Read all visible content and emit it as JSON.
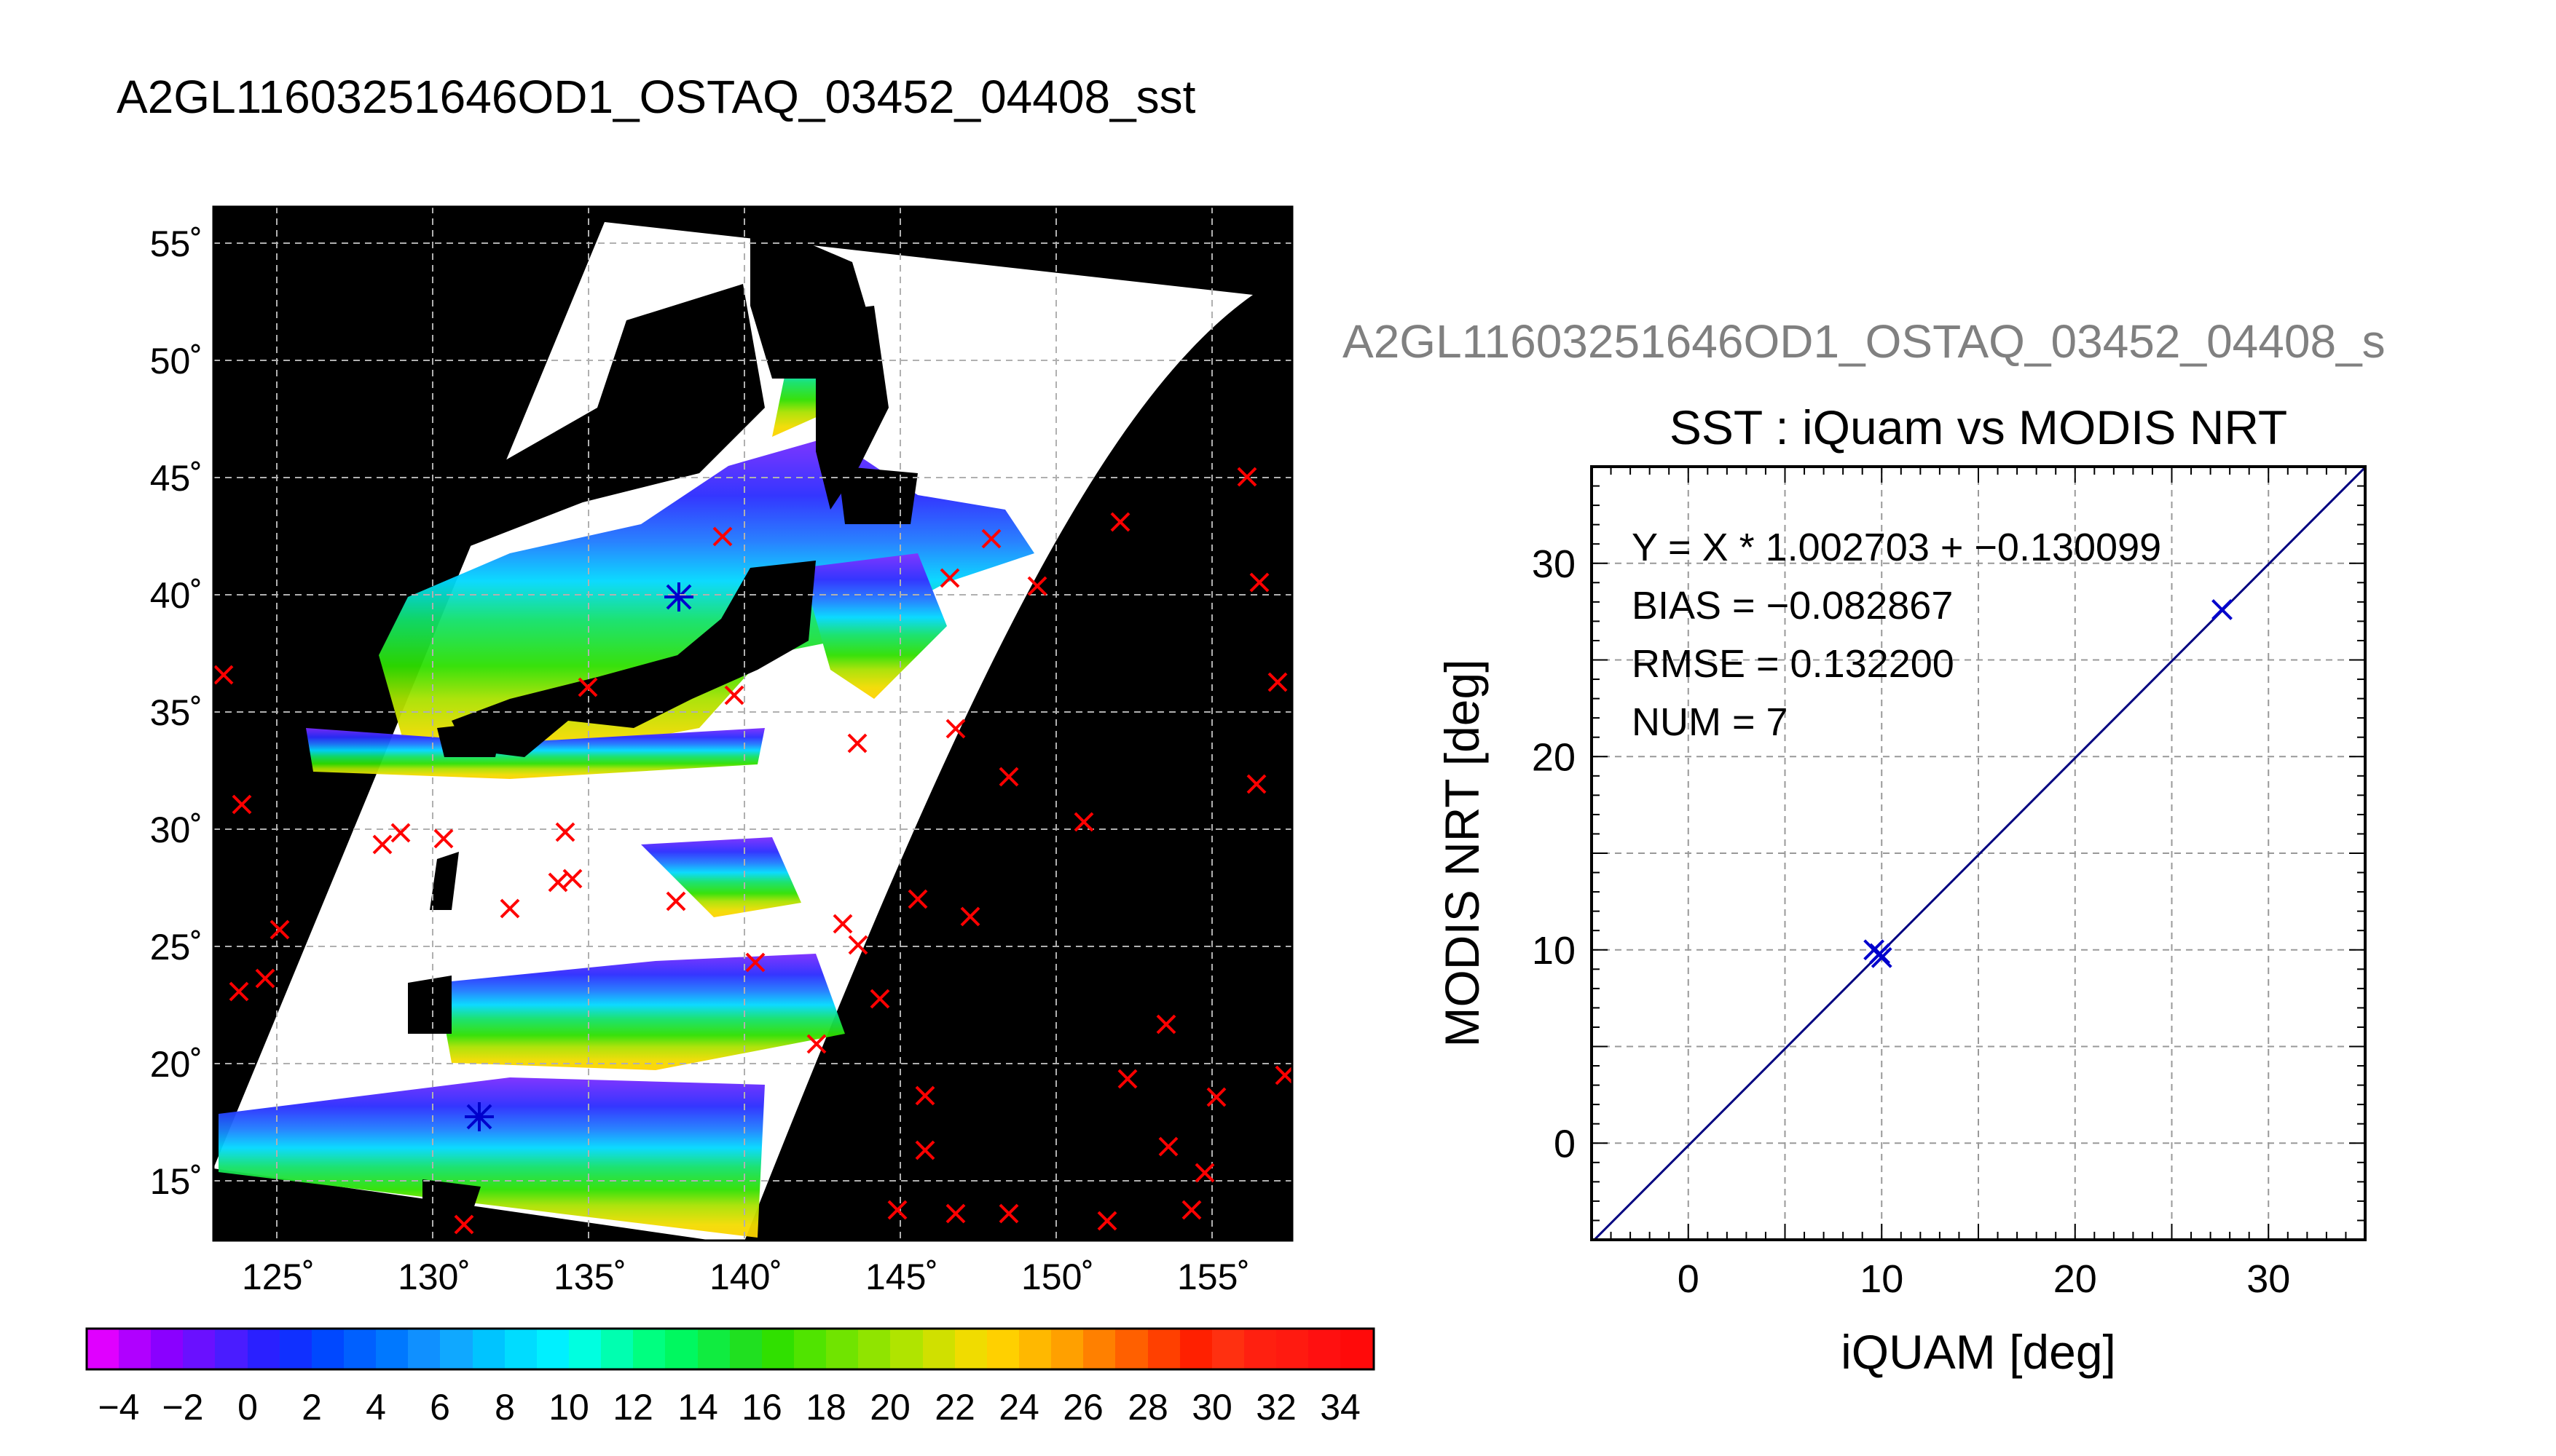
{
  "header": {
    "title": "A2GL11603251646OD1_OSTAQ_03452_04408_sst"
  },
  "map": {
    "lon_ticks": [
      "125˚",
      "130˚",
      "135˚",
      "140˚",
      "145˚",
      "150˚",
      "155˚"
    ],
    "lat_ticks": [
      "55˚",
      "50˚",
      "45˚",
      "40˚",
      "35˚",
      "30˚",
      "25˚",
      "20˚",
      "15˚"
    ],
    "colorbar_ticks": [
      "−4",
      "−2",
      "0",
      "2",
      "4",
      "6",
      "8",
      "10",
      "12",
      "14",
      "16",
      "18",
      "20",
      "22",
      "24",
      "26",
      "28",
      "30",
      "32",
      "34"
    ],
    "colors": {
      "land": "#000000",
      "cloud": "#ffffff",
      "marker_outside": "#ff0000",
      "marker_match": "#0000cc"
    }
  },
  "chart_data": {
    "type": "scatter",
    "file_label": "A2GL11603251646OD1_OSTAQ_03452_04408_s",
    "title": "SST : iQuam vs MODIS NRT",
    "xlabel": "iQUAM [deg]",
    "ylabel": "MODIS NRT [deg]",
    "xlim": [
      -5,
      35
    ],
    "ylim": [
      -5,
      35
    ],
    "x_ticks": [
      "0",
      "10",
      "20",
      "30"
    ],
    "y_ticks": [
      "0",
      "10",
      "20",
      "30"
    ],
    "grid": true,
    "stats": {
      "fit": "Y = X * 1.002703 + −0.130099",
      "bias": "BIAS = −0.082867",
      "rmse": "RMSE = 0.132200",
      "num": "NUM = 7"
    },
    "fit_line": {
      "slope": 1.002703,
      "intercept": -0.130099
    },
    "points": [
      {
        "x": 9.6,
        "y": 10.0
      },
      {
        "x": 9.9,
        "y": 9.8
      },
      {
        "x": 10.0,
        "y": 9.6
      },
      {
        "x": 27.6,
        "y": 27.6
      }
    ],
    "marker_color": "#0000cc",
    "line_color": "#000080"
  }
}
